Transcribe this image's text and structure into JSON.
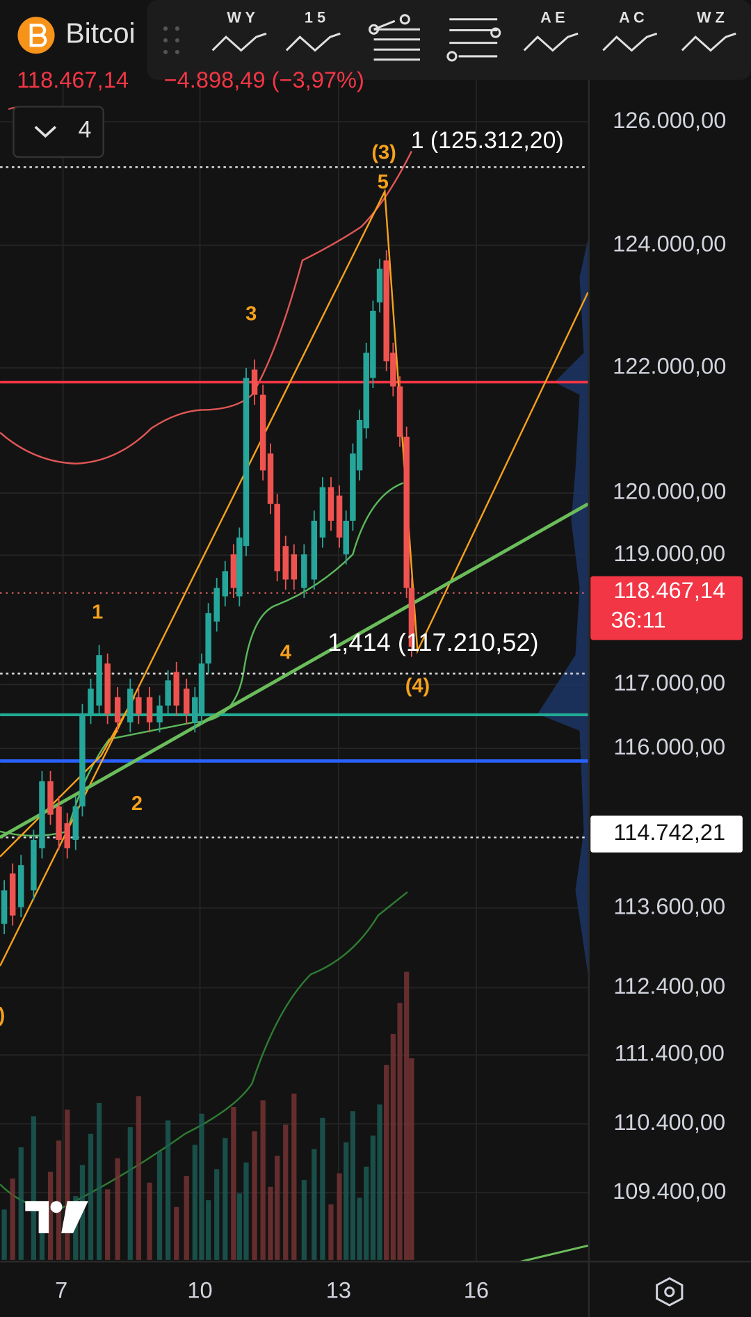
{
  "header": {
    "symbol": "Bitcoi",
    "price": "118.467,14",
    "change": "−4.898,49 (−3,97%)",
    "collapsed_count": "4",
    "toolbar": [
      "W Y",
      "1 5",
      "A E",
      "A C",
      "W Z"
    ]
  },
  "price_axis": {
    "labels": [
      "126.000,00",
      "124.000,00",
      "122.000,00",
      "120.000,00",
      "119.000,00",
      "117.000,00",
      "116.000,00",
      "113.600,00",
      "112.400,00",
      "111.400,00",
      "110.400,00",
      "109.400,00"
    ],
    "current_price": "118.467,14",
    "countdown": "36:11",
    "marker_price": "114.742,21"
  },
  "time_axis": {
    "labels": [
      "7",
      "10",
      "13",
      "16"
    ]
  },
  "annotations": {
    "fib_top": "1 (125.312,20)",
    "fib_bottom": "1,414 (117.210,52)",
    "waves": [
      "(3)",
      "5",
      "3",
      "1",
      "4",
      "2",
      "(4)",
      ")"
    ]
  }
}
